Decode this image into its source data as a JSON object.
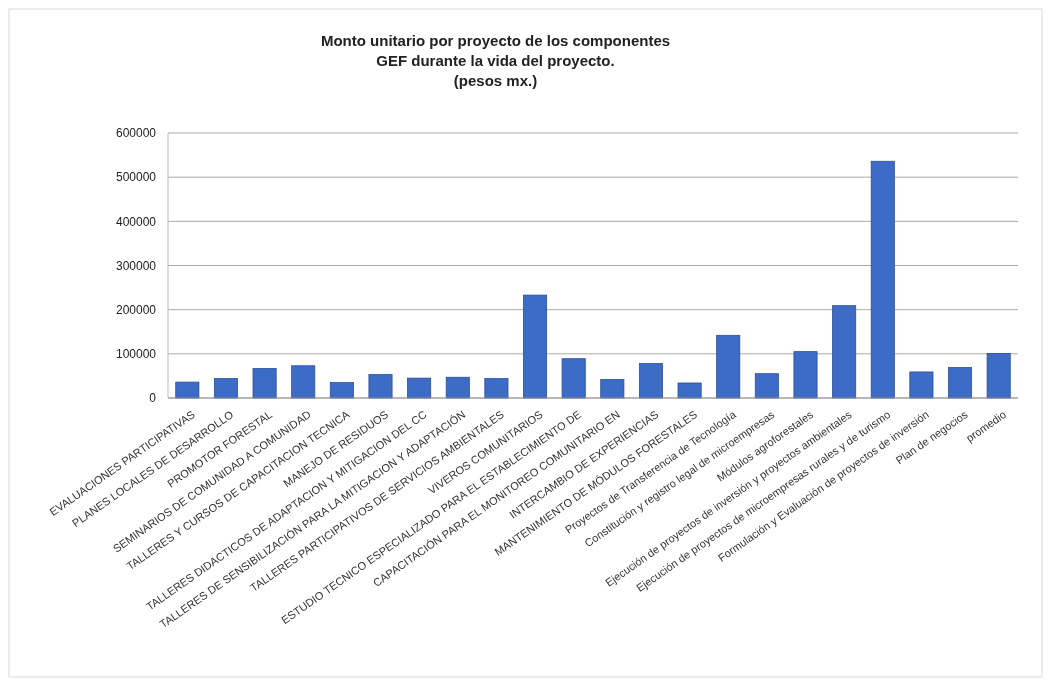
{
  "chart_data": {
    "type": "bar",
    "title": "Monto unitario por proyecto de los componentes\nGEF  durante la vida del proyecto.\n(pesos mx.)",
    "categories": [
      "EVALUACIONES PARTICIPATIVAS",
      "PLANES LOCALES DE DESARROLLO",
      "PROMOTOR FORESTAL",
      "SEMINARIOS DE COMUNIDAD A COMUNIDAD",
      "TALLERES Y CURSOS DE CAPACITACION TECNICA",
      "MANEJO DE RESIDUOS",
      "TALLERES DIDACTICOS DE ADAPTACION Y MITIGACION DEL CC",
      "TALLERES DE SENSIBILIZACIÓN PARA LA MITIGACION Y ADAPTACIÓN",
      "TALLERES PARTICIPATIVOS DE SERVICIOS AMBIENTALES",
      "VIVEROS COMUNITARIOS",
      "ESTUDIO TECNICO ESPECIALIZADO PARA EL ESTABLECIMIENTO DE",
      "CAPACITACIÓN PARA EL MONITOREO COMUNITARIO EN",
      "INTERCAMBIO DE EXPERIENCIAS",
      "MANTENIMIENTO DE MÓDULOS FORESTALES",
      "Proyectos de Transferencia de Tecnología",
      "Constitución y registro legal de microempresas",
      "Módulos agroforestales",
      "Ejecución de proyectos de inversión y proyectos ambientales",
      "Ejecución de proyectos de microempresas rurales y de turismo",
      "Formulación y Evaluación de proyectos de inversión",
      "Plan de negocios",
      "promedio"
    ],
    "values": [
      36000,
      44000,
      67000,
      73000,
      35000,
      53000,
      45000,
      47000,
      44000,
      233000,
      89000,
      42000,
      78000,
      34000,
      142000,
      55000,
      105000,
      209000,
      536000,
      59000,
      69000,
      101000
    ],
    "color": "#3d6cc6",
    "ylim": [
      0,
      600000
    ],
    "yticks": [
      0,
      100000,
      200000,
      300000,
      400000,
      500000,
      600000
    ],
    "grid": true
  }
}
